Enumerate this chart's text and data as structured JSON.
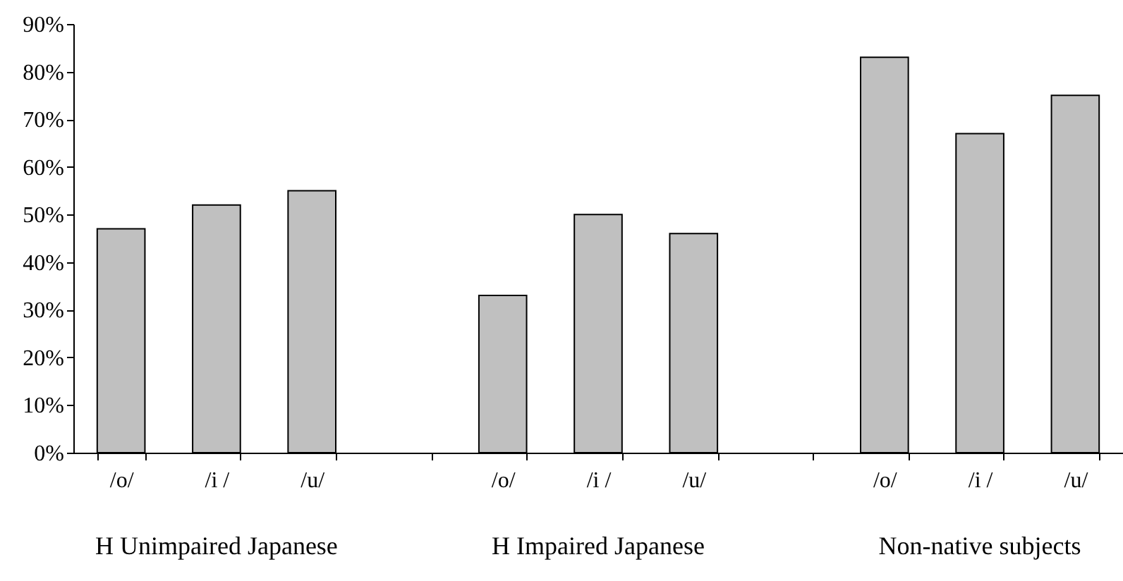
{
  "chart_data": {
    "type": "bar",
    "categories": [
      "/o/",
      "/i /",
      "/u/",
      null,
      "/o/",
      "/i /",
      "/u/",
      null,
      "/o/",
      "/i /",
      "/u/"
    ],
    "values": [
      47,
      52,
      55,
      null,
      33,
      50,
      46,
      null,
      83,
      67,
      75
    ],
    "color": "#c0c0c0",
    "ylim": [
      0,
      90
    ],
    "yticks": [
      {
        "value": 0,
        "label": "0%"
      },
      {
        "value": 10,
        "label": "10%"
      },
      {
        "value": 20,
        "label": "20%"
      },
      {
        "value": 30,
        "label": "30%"
      },
      {
        "value": 40,
        "label": "40%"
      },
      {
        "value": 50,
        "label": "50%"
      },
      {
        "value": 60,
        "label": "60%"
      },
      {
        "value": 70,
        "label": "70%"
      },
      {
        "value": 80,
        "label": "80%"
      },
      {
        "value": 90,
        "label": "90%"
      }
    ],
    "grid": false,
    "annotations": [
      "H Unimpaired Japanese",
      "H Impaired Japanese",
      "Non-native subjects"
    ]
  }
}
